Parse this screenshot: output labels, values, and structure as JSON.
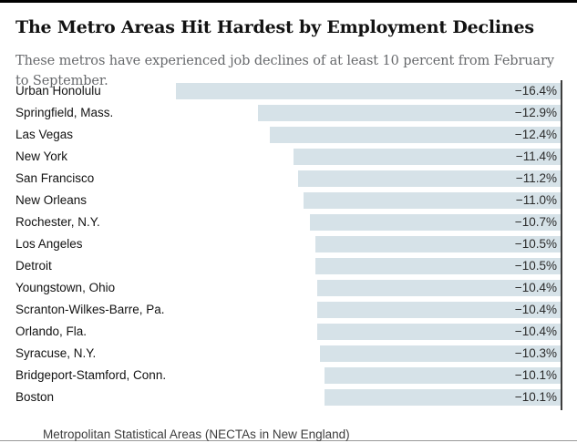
{
  "header": {
    "title": "The Metro Areas Hit Hardest by Employment Declines",
    "subtitle": "These metros have experienced job declines of at least 10 percent from February to September."
  },
  "chart_data": {
    "type": "bar",
    "orientation": "horizontal",
    "title": "The Metro Areas Hit Hardest by Employment Declines",
    "xlabel": "",
    "ylabel": "",
    "unit": "%",
    "value_axis": {
      "baseline_side": "right",
      "max_abs_value": 16.4,
      "grid": false,
      "legend": "none"
    },
    "categories": [
      "Urban Honolulu",
      "Springfield, Mass.",
      "Las Vegas",
      "New York",
      "San Francisco",
      "New Orleans",
      "Rochester, N.Y.",
      "Los Angeles",
      "Detroit",
      "Youngstown, Ohio",
      "Scranton-Wilkes-Barre, Pa.",
      "Orlando, Fla.",
      "Syracuse, N.Y.",
      "Bridgeport-Stamford, Conn.",
      "Boston"
    ],
    "values": [
      -16.4,
      -12.9,
      -12.4,
      -11.4,
      -11.2,
      -11.0,
      -10.7,
      -10.5,
      -10.5,
      -10.4,
      -10.4,
      -10.4,
      -10.3,
      -10.1,
      -10.1
    ],
    "value_labels": [
      "−16.4%",
      "−12.9%",
      "−12.4%",
      "−11.4%",
      "−11.2%",
      "−11.0%",
      "−10.7%",
      "−10.5%",
      "−10.5%",
      "−10.4%",
      "−10.4%",
      "−10.4%",
      "−10.3%",
      "−10.1%",
      "−10.1%"
    ],
    "colors": {
      "bar": "#d6e2e8",
      "axis_line": "#3d3d3d",
      "label": "#121212",
      "value_label": "#2b2b2b"
    }
  },
  "footnote": "Metropolitan Statistical Areas (NECTAs in New England)"
}
